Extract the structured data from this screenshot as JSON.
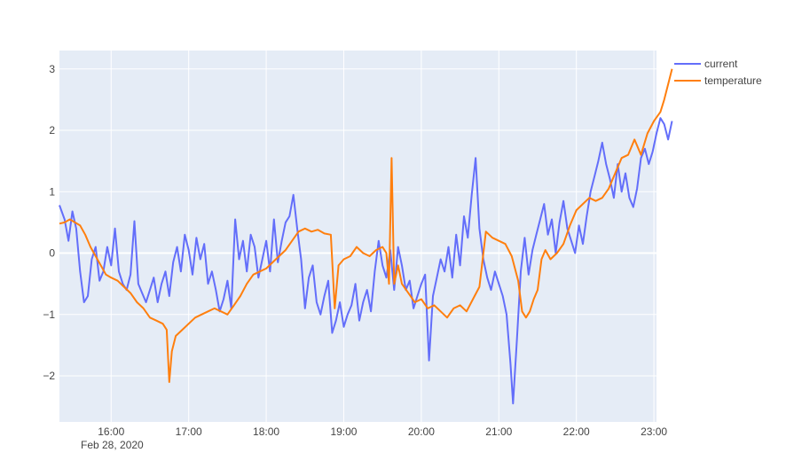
{
  "chart_data": {
    "type": "line",
    "x_axis": {
      "type": "time",
      "range": [
        "15:20",
        "23:02"
      ],
      "ticks": [
        "16:00",
        "17:00",
        "18:00",
        "19:00",
        "20:00",
        "21:00",
        "22:00",
        "23:00"
      ],
      "date_label": "Feb 28, 2020"
    },
    "y_axis": {
      "range": [
        -2.75,
        3.3
      ],
      "ticks": [
        -2,
        -1,
        0,
        1,
        2,
        3
      ],
      "tick_labels": [
        "−2",
        "−1",
        "0",
        "1",
        "2",
        "3"
      ]
    },
    "grid": true,
    "legend": "top-right",
    "series": [
      {
        "name": "current",
        "color": "#636efa",
        "points": [
          [
            "15:20",
            0.78
          ],
          [
            "15:24",
            0.55
          ],
          [
            "15:27",
            0.2
          ],
          [
            "15:30",
            0.68
          ],
          [
            "15:33",
            0.4
          ],
          [
            "15:36",
            -0.3
          ],
          [
            "15:39",
            -0.8
          ],
          [
            "15:42",
            -0.7
          ],
          [
            "15:45",
            -0.1
          ],
          [
            "15:48",
            0.1
          ],
          [
            "15:51",
            -0.45
          ],
          [
            "15:54",
            -0.3
          ],
          [
            "15:57",
            0.1
          ],
          [
            "16:00",
            -0.2
          ],
          [
            "16:03",
            0.4
          ],
          [
            "16:06",
            -0.3
          ],
          [
            "16:09",
            -0.5
          ],
          [
            "16:12",
            -0.6
          ],
          [
            "16:15",
            -0.35
          ],
          [
            "16:18",
            0.52
          ],
          [
            "16:21",
            -0.5
          ],
          [
            "16:24",
            -0.65
          ],
          [
            "16:27",
            -0.8
          ],
          [
            "16:30",
            -0.6
          ],
          [
            "16:33",
            -0.4
          ],
          [
            "16:36",
            -0.8
          ],
          [
            "16:39",
            -0.5
          ],
          [
            "16:42",
            -0.3
          ],
          [
            "16:45",
            -0.7
          ],
          [
            "16:48",
            -0.15
          ],
          [
            "16:51",
            0.1
          ],
          [
            "16:54",
            -0.3
          ],
          [
            "16:57",
            0.3
          ],
          [
            "17:00",
            0.05
          ],
          [
            "17:03",
            -0.35
          ],
          [
            "17:06",
            0.25
          ],
          [
            "17:09",
            -0.1
          ],
          [
            "17:12",
            0.15
          ],
          [
            "17:15",
            -0.5
          ],
          [
            "17:18",
            -0.3
          ],
          [
            "17:21",
            -0.6
          ],
          [
            "17:24",
            -0.95
          ],
          [
            "17:27",
            -0.75
          ],
          [
            "17:30",
            -0.45
          ],
          [
            "17:33",
            -0.9
          ],
          [
            "17:36",
            0.55
          ],
          [
            "17:39",
            -0.1
          ],
          [
            "17:42",
            0.2
          ],
          [
            "17:45",
            -0.3
          ],
          [
            "17:48",
            0.3
          ],
          [
            "17:51",
            0.1
          ],
          [
            "17:54",
            -0.4
          ],
          [
            "17:57",
            -0.1
          ],
          [
            "18:00",
            0.2
          ],
          [
            "18:03",
            -0.3
          ],
          [
            "18:06",
            0.55
          ],
          [
            "18:09",
            -0.15
          ],
          [
            "18:12",
            0.2
          ],
          [
            "18:15",
            0.5
          ],
          [
            "18:18",
            0.6
          ],
          [
            "18:21",
            0.95
          ],
          [
            "18:24",
            0.4
          ],
          [
            "18:27",
            -0.1
          ],
          [
            "18:30",
            -0.9
          ],
          [
            "18:33",
            -0.4
          ],
          [
            "18:36",
            -0.2
          ],
          [
            "18:39",
            -0.8
          ],
          [
            "18:42",
            -1.0
          ],
          [
            "18:45",
            -0.7
          ],
          [
            "18:48",
            -0.45
          ],
          [
            "18:51",
            -1.3
          ],
          [
            "18:54",
            -1.1
          ],
          [
            "18:57",
            -0.8
          ],
          [
            "19:00",
            -1.2
          ],
          [
            "19:03",
            -1.0
          ],
          [
            "19:06",
            -0.85
          ],
          [
            "19:09",
            -0.5
          ],
          [
            "19:12",
            -1.1
          ],
          [
            "19:15",
            -0.8
          ],
          [
            "19:18",
            -0.6
          ],
          [
            "19:21",
            -0.95
          ],
          [
            "19:24",
            -0.3
          ],
          [
            "19:27",
            0.2
          ],
          [
            "19:30",
            -0.2
          ],
          [
            "19:33",
            -0.4
          ],
          [
            "19:36",
            0.05
          ],
          [
            "19:39",
            -0.6
          ],
          [
            "19:42",
            0.1
          ],
          [
            "19:45",
            -0.2
          ],
          [
            "19:48",
            -0.6
          ],
          [
            "19:51",
            -0.45
          ],
          [
            "19:54",
            -0.9
          ],
          [
            "19:57",
            -0.7
          ],
          [
            "20:00",
            -0.5
          ],
          [
            "20:03",
            -0.35
          ],
          [
            "20:06",
            -1.75
          ],
          [
            "20:09",
            -0.7
          ],
          [
            "20:12",
            -0.4
          ],
          [
            "20:15",
            -0.1
          ],
          [
            "20:18",
            -0.3
          ],
          [
            "20:21",
            0.1
          ],
          [
            "20:24",
            -0.4
          ],
          [
            "20:27",
            0.3
          ],
          [
            "20:30",
            -0.2
          ],
          [
            "20:33",
            0.6
          ],
          [
            "20:36",
            0.25
          ],
          [
            "20:39",
            0.95
          ],
          [
            "20:42",
            1.55
          ],
          [
            "20:45",
            0.4
          ],
          [
            "20:48",
            -0.1
          ],
          [
            "20:51",
            -0.4
          ],
          [
            "20:54",
            -0.6
          ],
          [
            "20:57",
            -0.3
          ],
          [
            "21:00",
            -0.5
          ],
          [
            "21:03",
            -0.7
          ],
          [
            "21:06",
            -1.0
          ],
          [
            "21:09",
            -1.8
          ],
          [
            "21:11",
            -2.45
          ],
          [
            "21:14",
            -1.4
          ],
          [
            "21:17",
            -0.3
          ],
          [
            "21:20",
            0.25
          ],
          [
            "21:23",
            -0.35
          ],
          [
            "21:26",
            0.05
          ],
          [
            "21:29",
            0.3
          ],
          [
            "21:32",
            0.55
          ],
          [
            "21:35",
            0.8
          ],
          [
            "21:38",
            0.3
          ],
          [
            "21:41",
            0.55
          ],
          [
            "21:44",
            0.0
          ],
          [
            "21:47",
            0.5
          ],
          [
            "21:50",
            0.85
          ],
          [
            "21:53",
            0.4
          ],
          [
            "21:56",
            0.2
          ],
          [
            "21:59",
            0.0
          ],
          [
            "22:02",
            0.45
          ],
          [
            "22:05",
            0.15
          ],
          [
            "22:08",
            0.6
          ],
          [
            "22:11",
            1.0
          ],
          [
            "22:14",
            1.25
          ],
          [
            "22:17",
            1.5
          ],
          [
            "22:20",
            1.8
          ],
          [
            "22:23",
            1.45
          ],
          [
            "22:26",
            1.2
          ],
          [
            "22:29",
            0.9
          ],
          [
            "22:32",
            1.45
          ],
          [
            "22:35",
            1.0
          ],
          [
            "22:38",
            1.3
          ],
          [
            "22:41",
            0.9
          ],
          [
            "22:44",
            0.75
          ],
          [
            "22:47",
            1.05
          ],
          [
            "22:50",
            1.55
          ],
          [
            "22:53",
            1.7
          ],
          [
            "22:56",
            1.45
          ],
          [
            "22:59",
            1.65
          ],
          [
            "23:02",
            1.95
          ],
          [
            "23:05",
            2.2
          ],
          [
            "23:08",
            2.1
          ],
          [
            "23:11",
            1.85
          ],
          [
            "23:14",
            2.15
          ]
        ]
      },
      {
        "name": "temperature",
        "color": "#ff7f0e",
        "points": [
          [
            "15:20",
            0.48
          ],
          [
            "15:24",
            0.5
          ],
          [
            "15:28",
            0.55
          ],
          [
            "15:32",
            0.5
          ],
          [
            "15:36",
            0.45
          ],
          [
            "15:40",
            0.3
          ],
          [
            "15:44",
            0.1
          ],
          [
            "15:48",
            -0.05
          ],
          [
            "15:52",
            -0.2
          ],
          [
            "15:56",
            -0.35
          ],
          [
            "16:00",
            -0.4
          ],
          [
            "16:05",
            -0.45
          ],
          [
            "16:10",
            -0.55
          ],
          [
            "16:15",
            -0.65
          ],
          [
            "16:20",
            -0.8
          ],
          [
            "16:25",
            -0.9
          ],
          [
            "16:30",
            -1.05
          ],
          [
            "16:35",
            -1.1
          ],
          [
            "16:40",
            -1.15
          ],
          [
            "16:43",
            -1.25
          ],
          [
            "16:45",
            -2.1
          ],
          [
            "16:47",
            -1.6
          ],
          [
            "16:50",
            -1.35
          ],
          [
            "16:55",
            -1.25
          ],
          [
            "17:00",
            -1.15
          ],
          [
            "17:05",
            -1.05
          ],
          [
            "17:10",
            -1.0
          ],
          [
            "17:15",
            -0.95
          ],
          [
            "17:20",
            -0.9
          ],
          [
            "17:25",
            -0.95
          ],
          [
            "17:30",
            -1.0
          ],
          [
            "17:35",
            -0.85
          ],
          [
            "17:40",
            -0.7
          ],
          [
            "17:45",
            -0.5
          ],
          [
            "17:50",
            -0.35
          ],
          [
            "17:55",
            -0.3
          ],
          [
            "18:00",
            -0.25
          ],
          [
            "18:05",
            -0.15
          ],
          [
            "18:10",
            -0.05
          ],
          [
            "18:15",
            0.05
          ],
          [
            "18:20",
            0.2
          ],
          [
            "18:25",
            0.35
          ],
          [
            "18:30",
            0.4
          ],
          [
            "18:35",
            0.35
          ],
          [
            "18:40",
            0.38
          ],
          [
            "18:45",
            0.32
          ],
          [
            "18:50",
            0.3
          ],
          [
            "18:53",
            -0.9
          ],
          [
            "18:56",
            -0.2
          ],
          [
            "19:00",
            -0.1
          ],
          [
            "19:05",
            -0.05
          ],
          [
            "19:10",
            0.1
          ],
          [
            "19:15",
            0.0
          ],
          [
            "19:20",
            -0.05
          ],
          [
            "19:25",
            0.05
          ],
          [
            "19:30",
            0.1
          ],
          [
            "19:33",
            0.0
          ],
          [
            "19:35",
            -0.5
          ],
          [
            "19:37",
            1.55
          ],
          [
            "19:39",
            -0.5
          ],
          [
            "19:42",
            -0.2
          ],
          [
            "19:45",
            -0.5
          ],
          [
            "19:50",
            -0.65
          ],
          [
            "19:55",
            -0.8
          ],
          [
            "20:00",
            -0.75
          ],
          [
            "20:05",
            -0.9
          ],
          [
            "20:10",
            -0.85
          ],
          [
            "20:15",
            -0.95
          ],
          [
            "20:20",
            -1.05
          ],
          [
            "20:25",
            -0.9
          ],
          [
            "20:30",
            -0.85
          ],
          [
            "20:35",
            -0.95
          ],
          [
            "20:40",
            -0.75
          ],
          [
            "20:45",
            -0.55
          ],
          [
            "20:50",
            0.35
          ],
          [
            "20:55",
            0.25
          ],
          [
            "21:00",
            0.2
          ],
          [
            "21:05",
            0.15
          ],
          [
            "21:10",
            -0.05
          ],
          [
            "21:15",
            -0.45
          ],
          [
            "21:18",
            -0.95
          ],
          [
            "21:21",
            -1.05
          ],
          [
            "21:24",
            -0.95
          ],
          [
            "21:27",
            -0.75
          ],
          [
            "21:30",
            -0.6
          ],
          [
            "21:33",
            -0.1
          ],
          [
            "21:36",
            0.05
          ],
          [
            "21:40",
            -0.1
          ],
          [
            "21:45",
            0.0
          ],
          [
            "21:50",
            0.15
          ],
          [
            "21:55",
            0.45
          ],
          [
            "22:00",
            0.7
          ],
          [
            "22:05",
            0.8
          ],
          [
            "22:10",
            0.9
          ],
          [
            "22:15",
            0.85
          ],
          [
            "22:20",
            0.9
          ],
          [
            "22:25",
            1.05
          ],
          [
            "22:30",
            1.3
          ],
          [
            "22:35",
            1.55
          ],
          [
            "22:40",
            1.6
          ],
          [
            "22:45",
            1.85
          ],
          [
            "22:50",
            1.6
          ],
          [
            "22:55",
            1.95
          ],
          [
            "23:00",
            2.15
          ],
          [
            "23:05",
            2.3
          ],
          [
            "23:08",
            2.5
          ],
          [
            "23:11",
            2.75
          ],
          [
            "23:14",
            3.0
          ]
        ]
      }
    ]
  }
}
